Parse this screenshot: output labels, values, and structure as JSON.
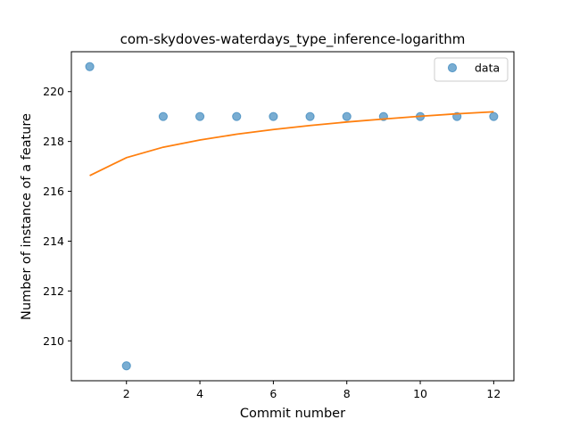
{
  "chart_data": {
    "type": "scatter",
    "title": "com-skydoves-waterdays_type_inference-logarithm",
    "xlabel": "Commit number",
    "ylabel": "Number of instance of a feature",
    "xlim": [
      0.5,
      12.55
    ],
    "ylim": [
      208.4,
      221.6
    ],
    "xticks": [
      2,
      4,
      6,
      8,
      10,
      12
    ],
    "yticks": [
      210,
      212,
      214,
      216,
      218,
      220
    ],
    "grid": false,
    "legend_position": "top-right",
    "series": [
      {
        "name": "data",
        "kind": "scatter",
        "color": "#1f77b4",
        "x": [
          1,
          2,
          3,
          4,
          5,
          6,
          7,
          8,
          9,
          10,
          11,
          12
        ],
        "y": [
          221,
          209,
          219,
          219,
          219,
          219,
          219,
          219,
          219,
          219,
          219,
          219
        ]
      },
      {
        "kind": "line",
        "color": "#ff7f0e",
        "x": [
          1,
          2,
          3,
          4,
          5,
          6,
          7,
          8,
          9,
          10,
          11,
          12
        ],
        "y": [
          216.63,
          217.35,
          217.77,
          218.06,
          218.29,
          218.48,
          218.64,
          218.78,
          218.9,
          219.01,
          219.11,
          219.19
        ]
      }
    ]
  }
}
